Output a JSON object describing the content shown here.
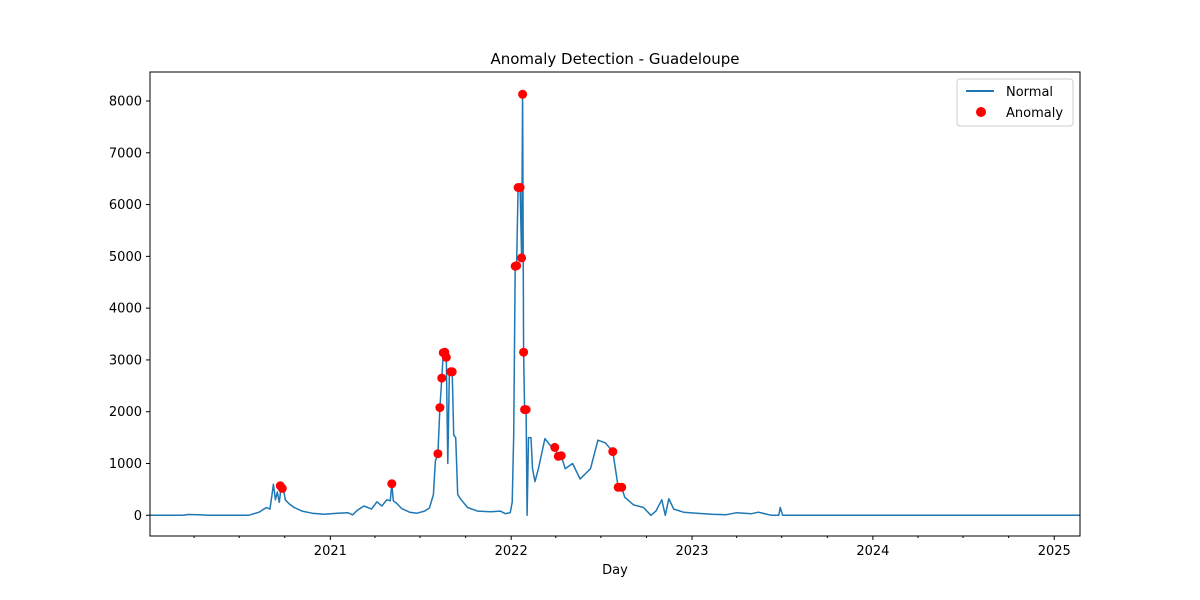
{
  "chart_data": {
    "type": "line",
    "title": "Anomaly Detection - Guadeloupe",
    "xlabel": "Day",
    "ylabel": "",
    "x_range": [
      "2020-01-03",
      "2025-02-22"
    ],
    "ylim": [
      -400,
      8560
    ],
    "x_ticks": [
      {
        "date": "2021-01-01",
        "label": "2021"
      },
      {
        "date": "2022-01-01",
        "label": "2022"
      },
      {
        "date": "2023-01-01",
        "label": "2023"
      },
      {
        "date": "2024-01-01",
        "label": "2024"
      },
      {
        "date": "2025-01-01",
        "label": "2025"
      }
    ],
    "y_ticks": [
      0,
      1000,
      2000,
      3000,
      4000,
      5000,
      6000,
      7000,
      8000
    ],
    "grid": false,
    "legend": {
      "position": "top-right",
      "entries": [
        "Normal",
        "Anomaly"
      ]
    },
    "colors": {
      "normal": "#1f77b4",
      "anomaly": "#ff0000",
      "axes": "#000000"
    },
    "series": [
      {
        "name": "Normal",
        "kind": "line",
        "points": [
          [
            "2020-01-03",
            0
          ],
          [
            "2020-03-10",
            0
          ],
          [
            "2020-03-20",
            15
          ],
          [
            "2020-04-10",
            10
          ],
          [
            "2020-05-01",
            0
          ],
          [
            "2020-07-20",
            0
          ],
          [
            "2020-08-10",
            60
          ],
          [
            "2020-08-25",
            150
          ],
          [
            "2020-09-01",
            120
          ],
          [
            "2020-09-05",
            380
          ],
          [
            "2020-09-08",
            600
          ],
          [
            "2020-09-12",
            300
          ],
          [
            "2020-09-16",
            450
          ],
          [
            "2020-09-20",
            250
          ],
          [
            "2020-09-24",
            580
          ],
          [
            "2020-09-28",
            520
          ],
          [
            "2020-10-02",
            300
          ],
          [
            "2020-10-10",
            220
          ],
          [
            "2020-10-20",
            150
          ],
          [
            "2020-11-05",
            80
          ],
          [
            "2020-11-25",
            40
          ],
          [
            "2020-12-20",
            20
          ],
          [
            "2021-01-15",
            40
          ],
          [
            "2021-02-05",
            50
          ],
          [
            "2021-02-15",
            10
          ],
          [
            "2021-02-25",
            100
          ],
          [
            "2021-03-10",
            180
          ],
          [
            "2021-03-25",
            120
          ],
          [
            "2021-04-05",
            260
          ],
          [
            "2021-04-15",
            180
          ],
          [
            "2021-04-25",
            300
          ],
          [
            "2021-05-02",
            280
          ],
          [
            "2021-05-05",
            610
          ],
          [
            "2021-05-08",
            280
          ],
          [
            "2021-05-15",
            230
          ],
          [
            "2021-05-25",
            130
          ],
          [
            "2021-06-10",
            60
          ],
          [
            "2021-06-25",
            40
          ],
          [
            "2021-07-10",
            80
          ],
          [
            "2021-07-20",
            140
          ],
          [
            "2021-07-28",
            400
          ],
          [
            "2021-08-01",
            1050
          ],
          [
            "2021-08-06",
            1190
          ],
          [
            "2021-08-10",
            2080
          ],
          [
            "2021-08-14",
            2650
          ],
          [
            "2021-08-17",
            3140
          ],
          [
            "2021-08-20",
            3150
          ],
          [
            "2021-08-23",
            3050
          ],
          [
            "2021-08-26",
            1000
          ],
          [
            "2021-08-29",
            2700
          ],
          [
            "2021-09-01",
            2770
          ],
          [
            "2021-09-04",
            2770
          ],
          [
            "2021-09-07",
            1550
          ],
          [
            "2021-09-11",
            1500
          ],
          [
            "2021-09-15",
            400
          ],
          [
            "2021-09-22",
            300
          ],
          [
            "2021-10-05",
            150
          ],
          [
            "2021-10-25",
            80
          ],
          [
            "2021-11-20",
            70
          ],
          [
            "2021-12-10",
            80
          ],
          [
            "2021-12-20",
            30
          ],
          [
            "2021-12-30",
            50
          ],
          [
            "2022-01-03",
            250
          ],
          [
            "2022-01-06",
            1550
          ],
          [
            "2022-01-09",
            4810
          ],
          [
            "2022-01-12",
            4820
          ],
          [
            "2022-01-15",
            6330
          ],
          [
            "2022-01-19",
            6330
          ],
          [
            "2022-01-22",
            4970
          ],
          [
            "2022-01-24",
            8130
          ],
          [
            "2022-01-26",
            3150
          ],
          [
            "2022-01-28",
            2040
          ],
          [
            "2022-01-31",
            2040
          ],
          [
            "2022-02-02",
            0
          ],
          [
            "2022-02-05",
            1500
          ],
          [
            "2022-02-10",
            1500
          ],
          [
            "2022-02-13",
            900
          ],
          [
            "2022-02-18",
            650
          ],
          [
            "2022-02-25",
            900
          ],
          [
            "2022-03-10",
            1480
          ],
          [
            "2022-03-25",
            1300
          ],
          [
            "2022-03-30",
            1310
          ],
          [
            "2022-04-06",
            1140
          ],
          [
            "2022-04-12",
            1150
          ],
          [
            "2022-04-20",
            900
          ],
          [
            "2022-05-05",
            1000
          ],
          [
            "2022-05-20",
            700
          ],
          [
            "2022-06-10",
            900
          ],
          [
            "2022-06-25",
            1450
          ],
          [
            "2022-07-10",
            1400
          ],
          [
            "2022-07-25",
            1230
          ],
          [
            "2022-08-05",
            540
          ],
          [
            "2022-08-12",
            540
          ],
          [
            "2022-08-18",
            350
          ],
          [
            "2022-09-05",
            200
          ],
          [
            "2022-09-25",
            150
          ],
          [
            "2022-10-10",
            0
          ],
          [
            "2022-10-20",
            80
          ],
          [
            "2022-11-01",
            300
          ],
          [
            "2022-11-08",
            0
          ],
          [
            "2022-11-15",
            320
          ],
          [
            "2022-11-25",
            120
          ],
          [
            "2022-12-15",
            60
          ],
          [
            "2023-01-10",
            40
          ],
          [
            "2023-02-10",
            20
          ],
          [
            "2023-03-10",
            10
          ],
          [
            "2023-04-01",
            50
          ],
          [
            "2023-05-01",
            30
          ],
          [
            "2023-05-15",
            60
          ],
          [
            "2023-06-10",
            0
          ],
          [
            "2023-06-25",
            0
          ],
          [
            "2023-06-28",
            150
          ],
          [
            "2023-07-03",
            0
          ],
          [
            "2025-02-22",
            0
          ]
        ]
      },
      {
        "name": "Anomaly",
        "kind": "scatter",
        "points": [
          [
            "2020-09-22",
            570
          ],
          [
            "2020-09-26",
            520
          ],
          [
            "2021-05-05",
            610
          ],
          [
            "2021-08-06",
            1190
          ],
          [
            "2021-08-10",
            2080
          ],
          [
            "2021-08-14",
            2650
          ],
          [
            "2021-08-17",
            3140
          ],
          [
            "2021-08-20",
            3150
          ],
          [
            "2021-08-23",
            3050
          ],
          [
            "2021-09-01",
            2770
          ],
          [
            "2021-09-04",
            2770
          ],
          [
            "2022-01-09",
            4810
          ],
          [
            "2022-01-12",
            4820
          ],
          [
            "2022-01-15",
            6330
          ],
          [
            "2022-01-19",
            6330
          ],
          [
            "2022-01-22",
            4970
          ],
          [
            "2022-01-24",
            8130
          ],
          [
            "2022-01-26",
            3150
          ],
          [
            "2022-01-28",
            2040
          ],
          [
            "2022-01-31",
            2040
          ],
          [
            "2022-03-30",
            1310
          ],
          [
            "2022-04-06",
            1140
          ],
          [
            "2022-04-12",
            1150
          ],
          [
            "2022-07-25",
            1230
          ],
          [
            "2022-08-05",
            540
          ],
          [
            "2022-08-12",
            540
          ]
        ]
      }
    ]
  }
}
